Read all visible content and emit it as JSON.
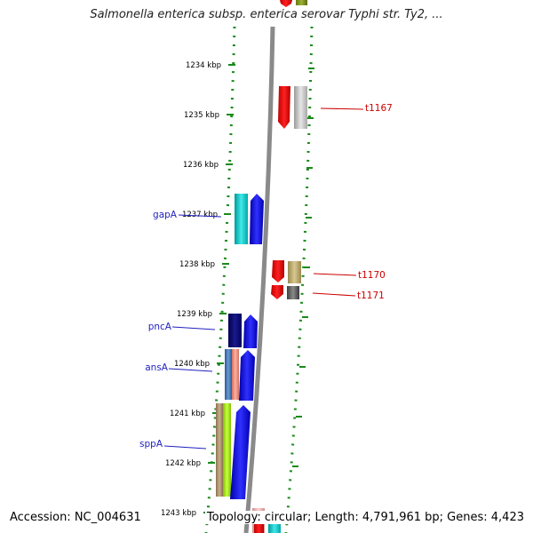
{
  "header": {
    "title": "Salmonella enterica subsp. enterica serovar Typhi str. Ty2, ..."
  },
  "footer": {
    "accession": "Accession: NC_004631",
    "topology": "Topology: circular; Length: 4,791,961 bp; Genes: 4,423"
  },
  "ruler": {
    "ticks": [
      "1234 kbp",
      "1235 kbp",
      "1236 kbp",
      "1237 kbp",
      "1238 kbp",
      "1239 kbp",
      "1240 kbp",
      "1241 kbp",
      "1242 kbp",
      "1243 kbp"
    ]
  },
  "left_genes": [
    "gapA",
    "pncA",
    "ansA",
    "sppA"
  ],
  "right_genes": [
    "t1167",
    "t1170",
    "t1171"
  ],
  "colors": {
    "axis": "#808080",
    "dots": "#1a8a1a",
    "left_label": "#1f1fbf",
    "right_label": "#cc0000"
  }
}
